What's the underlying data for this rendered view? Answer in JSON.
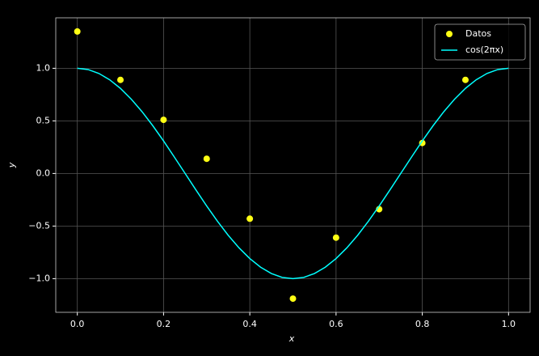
{
  "chart_data": {
    "type": "scatter",
    "xlabel": "x",
    "ylabel": "y",
    "xlim": [
      -0.05,
      1.05
    ],
    "ylim": [
      -1.32,
      1.48
    ],
    "xticks": [
      {
        "value": 0,
        "label": "0.0"
      },
      {
        "value": 0.2,
        "label": "0.2"
      },
      {
        "value": 0.4,
        "label": "0.4"
      },
      {
        "value": 0.6,
        "label": "0.6"
      },
      {
        "value": 0.8,
        "label": "0.8"
      },
      {
        "value": 1,
        "label": "1.0"
      }
    ],
    "yticks": [
      {
        "value": -1,
        "label": "−1.0"
      },
      {
        "value": -0.5,
        "label": "−0.5"
      },
      {
        "value": 0,
        "label": "0.0"
      },
      {
        "value": 0.5,
        "label": "0.5"
      },
      {
        "value": 1,
        "label": "1.0"
      }
    ],
    "grid": true,
    "legend": "upper right",
    "series": [
      {
        "name": "Datos",
        "type": "scatter",
        "color": "#ffff14",
        "x": [
          0,
          0.1,
          0.2,
          0.3,
          0.4,
          0.5,
          0.6,
          0.7,
          0.8,
          0.9
        ],
        "values": [
          1.35,
          0.89,
          0.51,
          0.14,
          -0.43,
          -1.19,
          -0.61,
          -0.34,
          0.29,
          0.89
        ]
      },
      {
        "name": "cos(2πx)",
        "type": "line",
        "color": "#00ffff",
        "x": [
          0,
          0.025,
          0.05,
          0.075,
          0.1,
          0.125,
          0.15,
          0.175,
          0.2,
          0.225,
          0.25,
          0.275,
          0.3,
          0.325,
          0.35,
          0.375,
          0.4,
          0.425,
          0.45,
          0.475,
          0.5,
          0.525,
          0.55,
          0.575,
          0.6,
          0.625,
          0.65,
          0.675,
          0.7,
          0.725,
          0.75,
          0.775,
          0.8,
          0.825,
          0.85,
          0.875,
          0.9,
          0.925,
          0.95,
          0.975,
          1
        ],
        "values": [
          1,
          0.988,
          0.951,
          0.891,
          0.809,
          0.707,
          0.588,
          0.454,
          0.309,
          0.156,
          0,
          -0.156,
          -0.309,
          -0.454,
          -0.588,
          -0.707,
          -0.809,
          -0.891,
          -0.951,
          -0.988,
          -1,
          -0.988,
          -0.951,
          -0.891,
          -0.809,
          -0.707,
          -0.588,
          -0.454,
          -0.309,
          -0.156,
          0,
          0.156,
          0.309,
          0.454,
          0.588,
          0.707,
          0.809,
          0.891,
          0.951,
          0.988,
          1
        ]
      }
    ]
  }
}
